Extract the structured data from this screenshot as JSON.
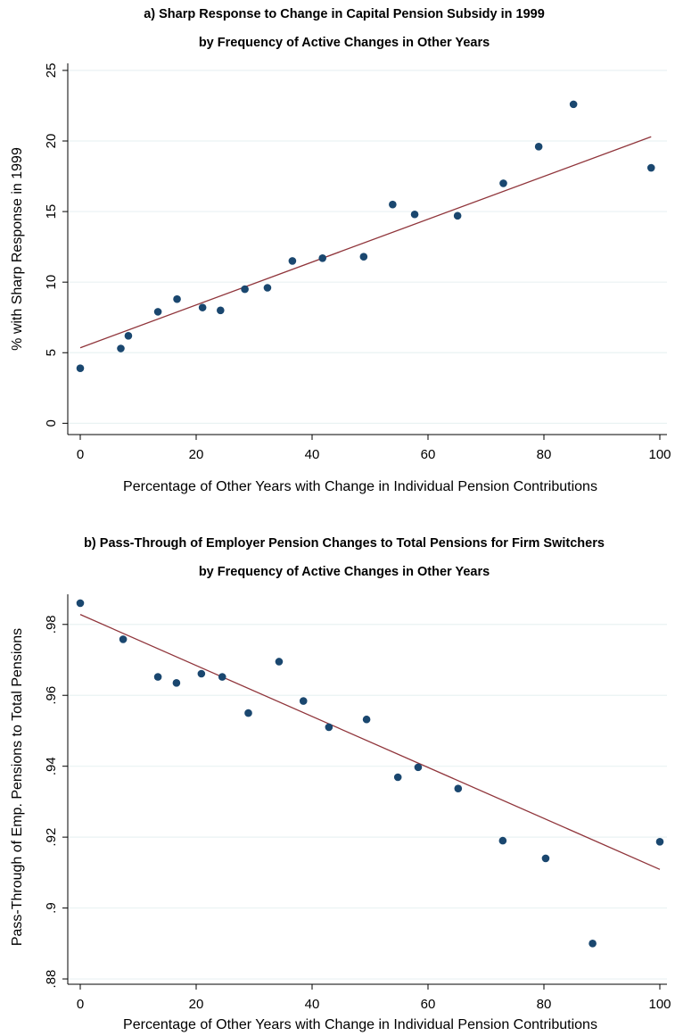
{
  "colors": {
    "background": "#ffffff",
    "point": "#1a476f",
    "fit_line": "#90353b",
    "grid": "#eaf2f3",
    "axis": "#000000"
  },
  "chart_data": [
    {
      "type": "scatter",
      "title": "a) Sharp Response to Change in Capital Pension Subsidy in 1999",
      "subtitle": "by Frequency of Active Changes in Other Years",
      "xlabel": "Percentage of Other Years with Change in Individual Pension Contributions",
      "ylabel": "% with Sharp Response in 1999",
      "xlim": [
        0,
        100
      ],
      "ylim": [
        -0.8,
        25.5
      ],
      "xticks": [
        0,
        20,
        40,
        60,
        80,
        100
      ],
      "xtick_labels": [
        "0",
        "20",
        "40",
        "60",
        "80",
        "100"
      ],
      "yticks": [
        0,
        5,
        10,
        15,
        20,
        25
      ],
      "ytick_labels": [
        "0",
        "5",
        "10",
        "15",
        "20",
        "25"
      ],
      "grid": true,
      "series": [
        {
          "kind": "points",
          "x": [
            0,
            7,
            8.3,
            13.4,
            16.7,
            21.1,
            24.2,
            28.4,
            32.3,
            36.6,
            41.8,
            48.9,
            53.9,
            57.7,
            65.1,
            73,
            79.1,
            85.1,
            98.5
          ],
          "y": [
            3.9,
            5.3,
            6.2,
            7.9,
            8.8,
            8.2,
            8,
            9.5,
            9.6,
            11.5,
            11.7,
            11.8,
            15.5,
            14.8,
            14.7,
            17,
            19.6,
            22.6,
            18.1
          ]
        },
        {
          "kind": "fit_line",
          "x": [
            0,
            98.5
          ],
          "y": [
            5.35,
            20.3
          ]
        }
      ]
    },
    {
      "type": "scatter",
      "title": "b) Pass-Through of Employer Pension Changes to Total Pensions for Firm Switchers",
      "subtitle": "by Frequency of Active Changes in Other Years",
      "xlabel": "Percentage of Other Years with Change in Individual Pension Contributions",
      "ylabel": "Pass-Through of Emp. Pensions to Total Pensions",
      "xlim": [
        0,
        100
      ],
      "ylim": [
        0.8785,
        0.9885
      ],
      "xticks": [
        0,
        20,
        40,
        60,
        80,
        100
      ],
      "xtick_labels": [
        "0",
        "20",
        "40",
        "60",
        "80",
        "100"
      ],
      "yticks": [
        0.88,
        0.9,
        0.92,
        0.94,
        0.96,
        0.98
      ],
      "ytick_labels": [
        ".88",
        ".9",
        ".92",
        ".94",
        ".96",
        ".98"
      ],
      "grid": true,
      "series": [
        {
          "kind": "points",
          "x": [
            0,
            7.4,
            13.4,
            16.6,
            20.9,
            24.5,
            29,
            34.3,
            38.5,
            42.9,
            49.4,
            54.8,
            58.3,
            65.2,
            72.9,
            80.3,
            88.4,
            100
          ],
          "y": [
            0.986,
            0.9758,
            0.9652,
            0.9635,
            0.9661,
            0.9652,
            0.955,
            0.9695,
            0.9584,
            0.951,
            0.9532,
            0.9369,
            0.9397,
            0.9337,
            0.919,
            0.914,
            0.89,
            0.9187
          ]
        },
        {
          "kind": "fit_line",
          "x": [
            0,
            100
          ],
          "y": [
            0.9828,
            0.9109
          ]
        }
      ]
    }
  ]
}
